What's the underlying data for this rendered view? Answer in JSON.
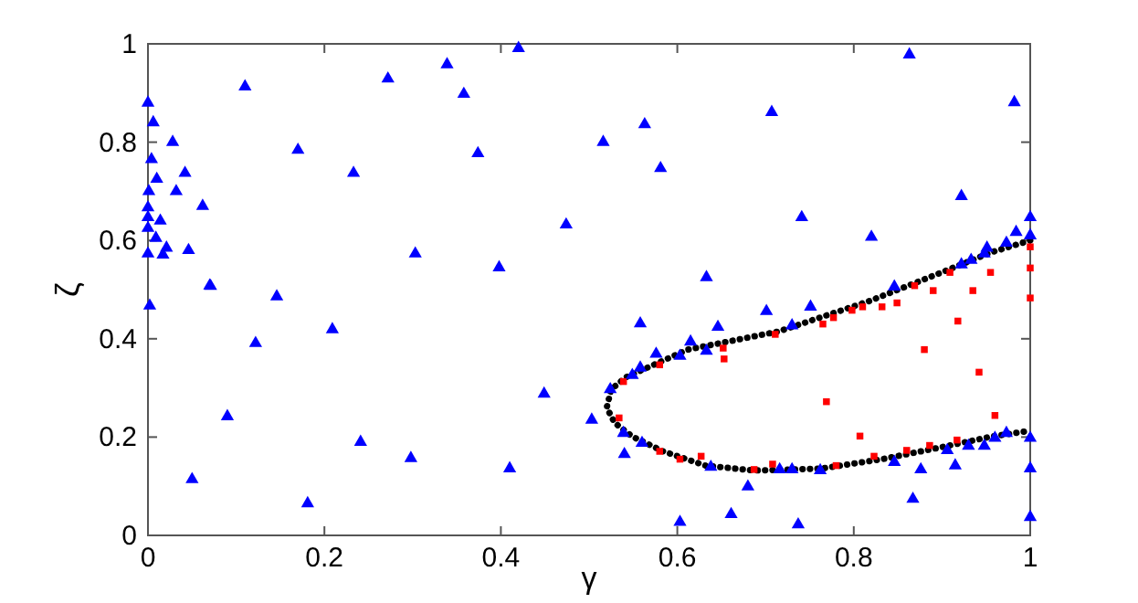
{
  "chart_data": {
    "type": "scatter",
    "xlabel": "γ",
    "ylabel": "ζ",
    "xlim": [
      0,
      1
    ],
    "ylim": [
      0,
      1
    ],
    "xticks": [
      0,
      0.2,
      0.4,
      0.6,
      0.8,
      1
    ],
    "yticks": [
      0,
      0.2,
      0.4,
      0.6,
      0.8,
      1
    ],
    "grid": false,
    "series": [
      {
        "type": "line",
        "color": "#000000",
        "marker": "none",
        "line_style": "dotted",
        "x": [
          1.0,
          0.956,
          0.887,
          0.818,
          0.715,
          0.612,
          0.542,
          0.525,
          0.52,
          0.529,
          0.549,
          0.584,
          0.632,
          0.687,
          0.763,
          0.832,
          0.901,
          0.956,
          1.0
        ],
        "values": [
          0.6,
          0.576,
          0.526,
          0.477,
          0.415,
          0.378,
          0.322,
          0.297,
          0.26,
          0.229,
          0.201,
          0.171,
          0.142,
          0.132,
          0.136,
          0.155,
          0.18,
          0.201,
          0.213
        ]
      },
      {
        "color": "#ff0000",
        "marker": "square",
        "x": [
          1.0,
          1.0,
          0.955,
          0.909,
          0.935,
          0.89,
          0.869,
          1.0,
          0.849,
          0.832,
          0.81,
          0.798,
          0.777,
          0.765,
          0.918,
          0.711,
          0.652,
          0.653,
          0.58,
          0.539,
          0.88,
          0.942,
          0.769,
          0.96,
          0.534,
          0.807,
          0.886,
          0.917,
          0.86,
          0.823,
          0.78,
          0.708,
          0.687,
          0.627,
          0.603,
          0.58
        ],
        "values": [
          0.587,
          0.544,
          0.535,
          0.535,
          0.498,
          0.498,
          0.508,
          0.483,
          0.473,
          0.465,
          0.465,
          0.458,
          0.443,
          0.43,
          0.436,
          0.409,
          0.381,
          0.359,
          0.347,
          0.313,
          0.378,
          0.332,
          0.272,
          0.244,
          0.239,
          0.202,
          0.183,
          0.194,
          0.173,
          0.161,
          0.142,
          0.145,
          0.134,
          0.161,
          0.155,
          0.171
        ]
      },
      {
        "color": "#0000ff",
        "marker": "triangle",
        "x": [
          0,
          0.006,
          0.028,
          0.004,
          0.042,
          0.01,
          0.032,
          0.001,
          0.062,
          0,
          0.014,
          0,
          0,
          0.009,
          0.021,
          0.046,
          0,
          0.017,
          0.07,
          0.11,
          0.17,
          0.233,
          0.272,
          0.339,
          0.358,
          0.374,
          0.303,
          0.398,
          0.42,
          0.474,
          0.002,
          0.071,
          0.146,
          0.122,
          0.209,
          0.09,
          0.05,
          0.241,
          0.181,
          0.298,
          0.41,
          0.449,
          0.516,
          0.563,
          0.581,
          0.707,
          0.863,
          0.982,
          0.741,
          0.633,
          0.82,
          0.922,
          1.0,
          0.984,
          1.0,
          0.973,
          0.951,
          0.948,
          0.933,
          0.922,
          0.846,
          0.558,
          0.701,
          0.751,
          0.646,
          0.73,
          0.615,
          0.633,
          0.576,
          0.603,
          0.558,
          0.549,
          0.524,
          0.503,
          0.539,
          0.54,
          0.56,
          0.68,
          0.603,
          0.661,
          0.737,
          0.638,
          0.73,
          0.762,
          0.716,
          0.846,
          0.867,
          0.876,
          0.906,
          0.915,
          0.93,
          0.948,
          0.96,
          0.973,
          1.0,
          1.0,
          1.0
        ],
        "values": [
          0.88,
          0.84,
          0.8,
          0.765,
          0.737,
          0.725,
          0.7,
          0.7,
          0.67,
          0.667,
          0.64,
          0.647,
          0.625,
          0.605,
          0.585,
          0.58,
          0.573,
          0.571,
          0.508,
          0.913,
          0.784,
          0.737,
          0.929,
          0.958,
          0.898,
          0.777,
          0.573,
          0.545,
          0.991,
          0.632,
          0.467,
          0.507,
          0.486,
          0.391,
          0.419,
          0.242,
          0.114,
          0.19,
          0.065,
          0.157,
          0.136,
          0.288,
          0.8,
          0.836,
          0.747,
          0.861,
          0.978,
          0.881,
          0.647,
          0.525,
          0.607,
          0.69,
          0.647,
          0.617,
          0.61,
          0.595,
          0.585,
          0.573,
          0.56,
          0.551,
          0.506,
          0.431,
          0.456,
          0.465,
          0.424,
          0.427,
          0.394,
          0.375,
          0.369,
          0.365,
          0.341,
          0.326,
          0.297,
          0.235,
          0.208,
          0.165,
          0.188,
          0.099,
          0.027,
          0.043,
          0.022,
          0.139,
          0.134,
          0.132,
          0.134,
          0.149,
          0.074,
          0.134,
          0.173,
          0.142,
          0.182,
          0.182,
          0.198,
          0.208,
          0.198,
          0.136,
          0.037
        ]
      }
    ]
  }
}
